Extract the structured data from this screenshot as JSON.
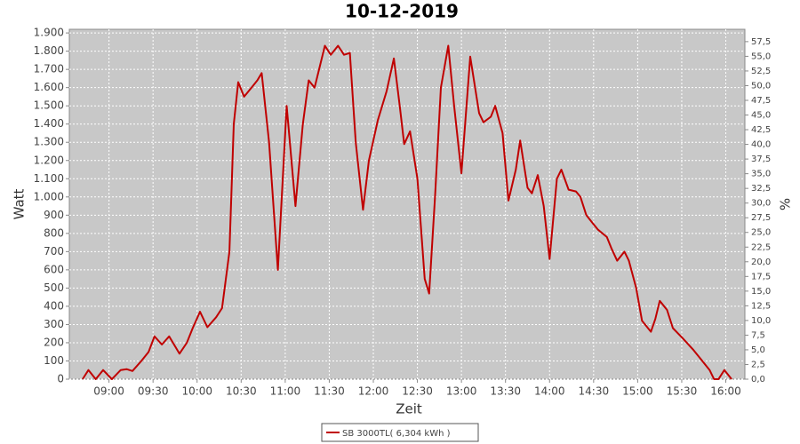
{
  "chart_data": {
    "type": "line",
    "title": "10-12-2019",
    "x_label": "Zeit",
    "y_label": "Watt",
    "y2_label": "%",
    "grid": true,
    "background": "#c8c8c8",
    "legend": "bottom",
    "x": [
      "08:42",
      "08:46",
      "08:51",
      "08:56",
      "09:02",
      "09:08",
      "09:12",
      "09:16",
      "09:22",
      "09:27",
      "09:31",
      "09:36",
      "09:41",
      "09:48",
      "09:53",
      "09:57",
      "10:02",
      "10:07",
      "10:13",
      "10:17",
      "10:22",
      "10:25",
      "10:28",
      "10:32",
      "10:37",
      "10:41",
      "10:44",
      "10:49",
      "10:55",
      "11:01",
      "11:07",
      "11:12",
      "11:16",
      "11:20",
      "11:27",
      "11:31",
      "11:36",
      "11:40",
      "11:44",
      "11:48",
      "11:53",
      "11:57",
      "12:03",
      "12:09",
      "12:14",
      "12:18",
      "12:21",
      "12:25",
      "12:30",
      "12:35",
      "12:38",
      "12:42",
      "12:46",
      "12:51",
      "12:55",
      "13:00",
      "13:06",
      "13:12",
      "13:15",
      "13:20",
      "13:23",
      "13:28",
      "13:32",
      "13:37",
      "13:40",
      "13:45",
      "13:48",
      "13:52",
      "13:56",
      "14:00",
      "14:05",
      "14:08",
      "14:13",
      "14:18",
      "14:21",
      "14:25",
      "14:30",
      "14:33",
      "14:39",
      "14:42",
      "14:46",
      "14:51",
      "14:54",
      "14:59",
      "15:03",
      "15:09",
      "15:12",
      "15:15",
      "15:20",
      "15:24",
      "15:30",
      "15:38",
      "15:44",
      "15:49",
      "15:52",
      "15:55",
      "15:59",
      "16:04"
    ],
    "series": [
      {
        "name": "SB 3000TL( 6,304 kWh )",
        "color": "#c00000",
        "values": [
          0,
          50,
          0,
          50,
          0,
          50,
          55,
          45,
          100,
          150,
          235,
          190,
          235,
          140,
          200,
          280,
          370,
          285,
          340,
          390,
          700,
          1400,
          1630,
          1550,
          1600,
          1640,
          1680,
          1300,
          600,
          1500,
          950,
          1400,
          1640,
          1600,
          1830,
          1780,
          1830,
          1780,
          1790,
          1300,
          930,
          1200,
          1420,
          1580,
          1760,
          1500,
          1290,
          1360,
          1100,
          550,
          470,
          1000,
          1600,
          1830,
          1500,
          1130,
          1770,
          1460,
          1410,
          1440,
          1500,
          1350,
          980,
          1150,
          1310,
          1050,
          1020,
          1120,
          950,
          660,
          1100,
          1150,
          1040,
          1030,
          1000,
          900,
          850,
          820,
          780,
          720,
          650,
          700,
          650,
          500,
          320,
          260,
          330,
          430,
          380,
          280,
          230,
          160,
          100,
          50,
          0,
          0,
          50,
          0
        ]
      }
    ],
    "xlim": [
      "08:33",
      "16:13"
    ],
    "xticks": [
      "09:00",
      "09:30",
      "10:00",
      "10:30",
      "11:00",
      "11:30",
      "12:00",
      "12:30",
      "13:00",
      "13:30",
      "14:00",
      "14:30",
      "15:00",
      "15:30",
      "16:00"
    ],
    "ylim": [
      0,
      1920
    ],
    "yticks": [
      0,
      100,
      200,
      300,
      400,
      500,
      600,
      700,
      800,
      900,
      {
        "value": 1000,
        "label": "1.000"
      },
      {
        "value": 1100,
        "label": "1.100"
      },
      {
        "value": 1200,
        "label": "1.200"
      },
      {
        "value": 1300,
        "label": "1.300"
      },
      {
        "value": 1400,
        "label": "1.400"
      },
      {
        "value": 1500,
        "label": "1.500"
      },
      {
        "value": 1600,
        "label": "1.600"
      },
      {
        "value": 1700,
        "label": "1.700"
      },
      {
        "value": 1800,
        "label": "1.800"
      },
      {
        "value": 1900,
        "label": "1.900"
      }
    ],
    "y2lim": [
      0,
      59.6
    ],
    "y2ticks": [
      {
        "value": 0,
        "label": "0,0"
      },
      {
        "value": 2.5,
        "label": "2,5"
      },
      {
        "value": 5,
        "label": "5,0"
      },
      {
        "value": 7.5,
        "label": "7,5"
      },
      {
        "value": 10,
        "label": "10,0"
      },
      {
        "value": 12.5,
        "label": "12,5"
      },
      {
        "value": 15,
        "label": "15,0"
      },
      {
        "value": 17.5,
        "label": "17,5"
      },
      {
        "value": 20,
        "label": "20,0"
      },
      {
        "value": 22.5,
        "label": "22,5"
      },
      {
        "value": 25,
        "label": "25,0"
      },
      {
        "value": 27.5,
        "label": "27,5"
      },
      {
        "value": 30,
        "label": "30,0"
      },
      {
        "value": 32.5,
        "label": "32,5"
      },
      {
        "value": 35,
        "label": "35,0"
      },
      {
        "value": 37.5,
        "label": "37,5"
      },
      {
        "value": 40,
        "label": "40,0"
      },
      {
        "value": 42.5,
        "label": "42,5"
      },
      {
        "value": 45,
        "label": "45,0"
      },
      {
        "value": 47.5,
        "label": "47,5"
      },
      {
        "value": 50,
        "label": "50,0"
      },
      {
        "value": 52.5,
        "label": "52,5"
      },
      {
        "value": 55,
        "label": "55,0"
      },
      {
        "value": 57.5,
        "label": "57,5"
      }
    ]
  }
}
